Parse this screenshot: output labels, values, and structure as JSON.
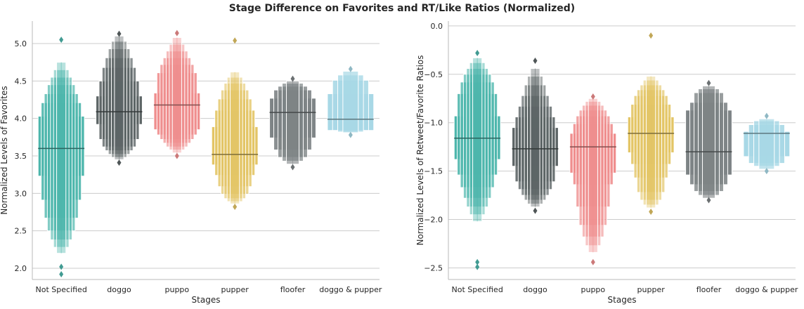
{
  "figure": {
    "title": "Stage Difference on Favorites and RT/Like Ratios (Normalized)"
  },
  "chart_data": [
    {
      "type": "boxen",
      "xlabel": "Stages",
      "ylabel": "Normalized Levels of Favorites",
      "ylim": [
        1.85,
        5.3
      ],
      "yticks": [
        2.0,
        2.5,
        3.0,
        3.5,
        4.0,
        4.5,
        5.0
      ],
      "ytick_labels": [
        "2.0",
        "2.5",
        "3.0",
        "3.5",
        "4.0",
        "4.5",
        "5.0"
      ],
      "grid": true,
      "categories": [
        "Not Specified",
        "doggo",
        "puppo",
        "pupper",
        "floofer",
        "doggo & pupper"
      ],
      "series": [
        {
          "color": "#4db6ac",
          "median": 3.6,
          "levels": [
            [
              3.23,
              4.03
            ],
            [
              2.91,
              4.21
            ],
            [
              2.67,
              4.33
            ],
            [
              2.5,
              4.45
            ],
            [
              2.38,
              4.55
            ],
            [
              2.28,
              4.65
            ],
            [
              2.2,
              4.75
            ]
          ],
          "outliers": [
            2.02,
            1.92,
            5.05
          ]
        },
        {
          "color": "#5d6566",
          "median": 4.09,
          "levels": [
            [
              3.92,
              4.3
            ],
            [
              3.72,
              4.5
            ],
            [
              3.62,
              4.68
            ],
            [
              3.57,
              4.81
            ],
            [
              3.52,
              4.93
            ],
            [
              3.48,
              5.03
            ],
            [
              3.45,
              5.1
            ]
          ],
          "outliers": [
            3.41,
            5.13
          ]
        },
        {
          "color": "#ef8e8e",
          "median": 4.18,
          "levels": [
            [
              3.85,
              4.34
            ],
            [
              3.78,
              4.61
            ],
            [
              3.72,
              4.72
            ],
            [
              3.67,
              4.81
            ],
            [
              3.62,
              4.9
            ],
            [
              3.58,
              4.99
            ],
            [
              3.54,
              5.08
            ]
          ],
          "outliers": [
            3.5,
            5.14
          ]
        },
        {
          "color": "#e3c566",
          "median": 3.52,
          "levels": [
            [
              3.38,
              3.89
            ],
            [
              3.24,
              4.11
            ],
            [
              3.09,
              4.26
            ],
            [
              2.99,
              4.38
            ],
            [
              2.93,
              4.47
            ],
            [
              2.89,
              4.55
            ],
            [
              2.86,
              4.62
            ]
          ],
          "outliers": [
            2.82,
            5.04
          ]
        },
        {
          "color": "#7e8486",
          "median": 4.08,
          "levels": [
            [
              3.74,
              4.27
            ],
            [
              3.58,
              4.38
            ],
            [
              3.48,
              4.43
            ],
            [
              3.43,
              4.47
            ],
            [
              3.39,
              4.5
            ]
          ],
          "outliers": [
            3.35,
            4.53
          ]
        },
        {
          "color": "#a8d8e6",
          "median": 3.99,
          "levels": [
            [
              3.84,
              4.33
            ],
            [
              3.84,
              4.51
            ],
            [
              3.82,
              4.58
            ],
            [
              3.81,
              4.63
            ]
          ],
          "outliers": [
            3.78,
            4.66
          ]
        }
      ]
    },
    {
      "type": "boxen",
      "xlabel": "Stages",
      "ylabel": "Normalized Levels of Retweet/Favorite Ratios",
      "ylim": [
        -2.62,
        0.05
      ],
      "yticks": [
        0.0,
        -0.5,
        -1.0,
        -1.5,
        -2.0,
        -2.5
      ],
      "ytick_labels": [
        "0.0",
        "−0.5",
        "−1.0",
        "−1.5",
        "−2.0",
        "−2.5"
      ],
      "grid": true,
      "categories": [
        "Not Specified",
        "doggo",
        "puppo",
        "pupper",
        "floofer",
        "doggo & pupper"
      ],
      "series": [
        {
          "color": "#4db6ac",
          "median": -1.16,
          "levels": [
            [
              -1.38,
              -0.93
            ],
            [
              -1.54,
              -0.7
            ],
            [
              -1.67,
              -0.58
            ],
            [
              -1.78,
              -0.5
            ],
            [
              -1.87,
              -0.44
            ],
            [
              -1.95,
              -0.38
            ],
            [
              -2.02,
              -0.33
            ]
          ],
          "outliers": [
            -2.44,
            -2.49,
            -0.28
          ]
        },
        {
          "color": "#5d6566",
          "median": -1.27,
          "levels": [
            [
              -1.45,
              -1.05
            ],
            [
              -1.61,
              -0.94
            ],
            [
              -1.69,
              -0.83
            ],
            [
              -1.75,
              -0.72
            ],
            [
              -1.8,
              -0.61
            ],
            [
              -1.84,
              -0.52
            ],
            [
              -1.87,
              -0.44
            ]
          ],
          "outliers": [
            -1.91,
            -0.36
          ]
        },
        {
          "color": "#ef8e8e",
          "median": -1.25,
          "levels": [
            [
              -1.52,
              -1.11
            ],
            [
              -1.64,
              -1.01
            ],
            [
              -1.87,
              -0.93
            ],
            [
              -2.06,
              -0.87
            ],
            [
              -2.18,
              -0.82
            ],
            [
              -2.27,
              -0.78
            ],
            [
              -2.34,
              -0.75
            ]
          ],
          "outliers": [
            -2.44,
            -0.73
          ]
        },
        {
          "color": "#e3c566",
          "median": -1.11,
          "levels": [
            [
              -1.31,
              -0.94
            ],
            [
              -1.43,
              -0.81
            ],
            [
              -1.57,
              -0.72
            ],
            [
              -1.72,
              -0.66
            ],
            [
              -1.8,
              -0.61
            ],
            [
              -1.85,
              -0.56
            ],
            [
              -1.88,
              -0.52
            ]
          ],
          "outliers": [
            -1.92,
            -0.1
          ]
        },
        {
          "color": "#7e8486",
          "median": -1.3,
          "levels": [
            [
              -1.54,
              -0.87
            ],
            [
              -1.64,
              -0.79
            ],
            [
              -1.71,
              -0.69
            ],
            [
              -1.75,
              -0.65
            ],
            [
              -1.78,
              -0.62
            ]
          ],
          "outliers": [
            -1.8,
            -0.59
          ]
        },
        {
          "color": "#a8d8e6",
          "median": -1.11,
          "levels": [
            [
              -1.35,
              -1.09
            ],
            [
              -1.42,
              -1.02
            ],
            [
              -1.45,
              -0.98
            ],
            [
              -1.48,
              -0.96
            ]
          ],
          "outliers": [
            -1.5,
            -0.93
          ]
        }
      ]
    }
  ]
}
